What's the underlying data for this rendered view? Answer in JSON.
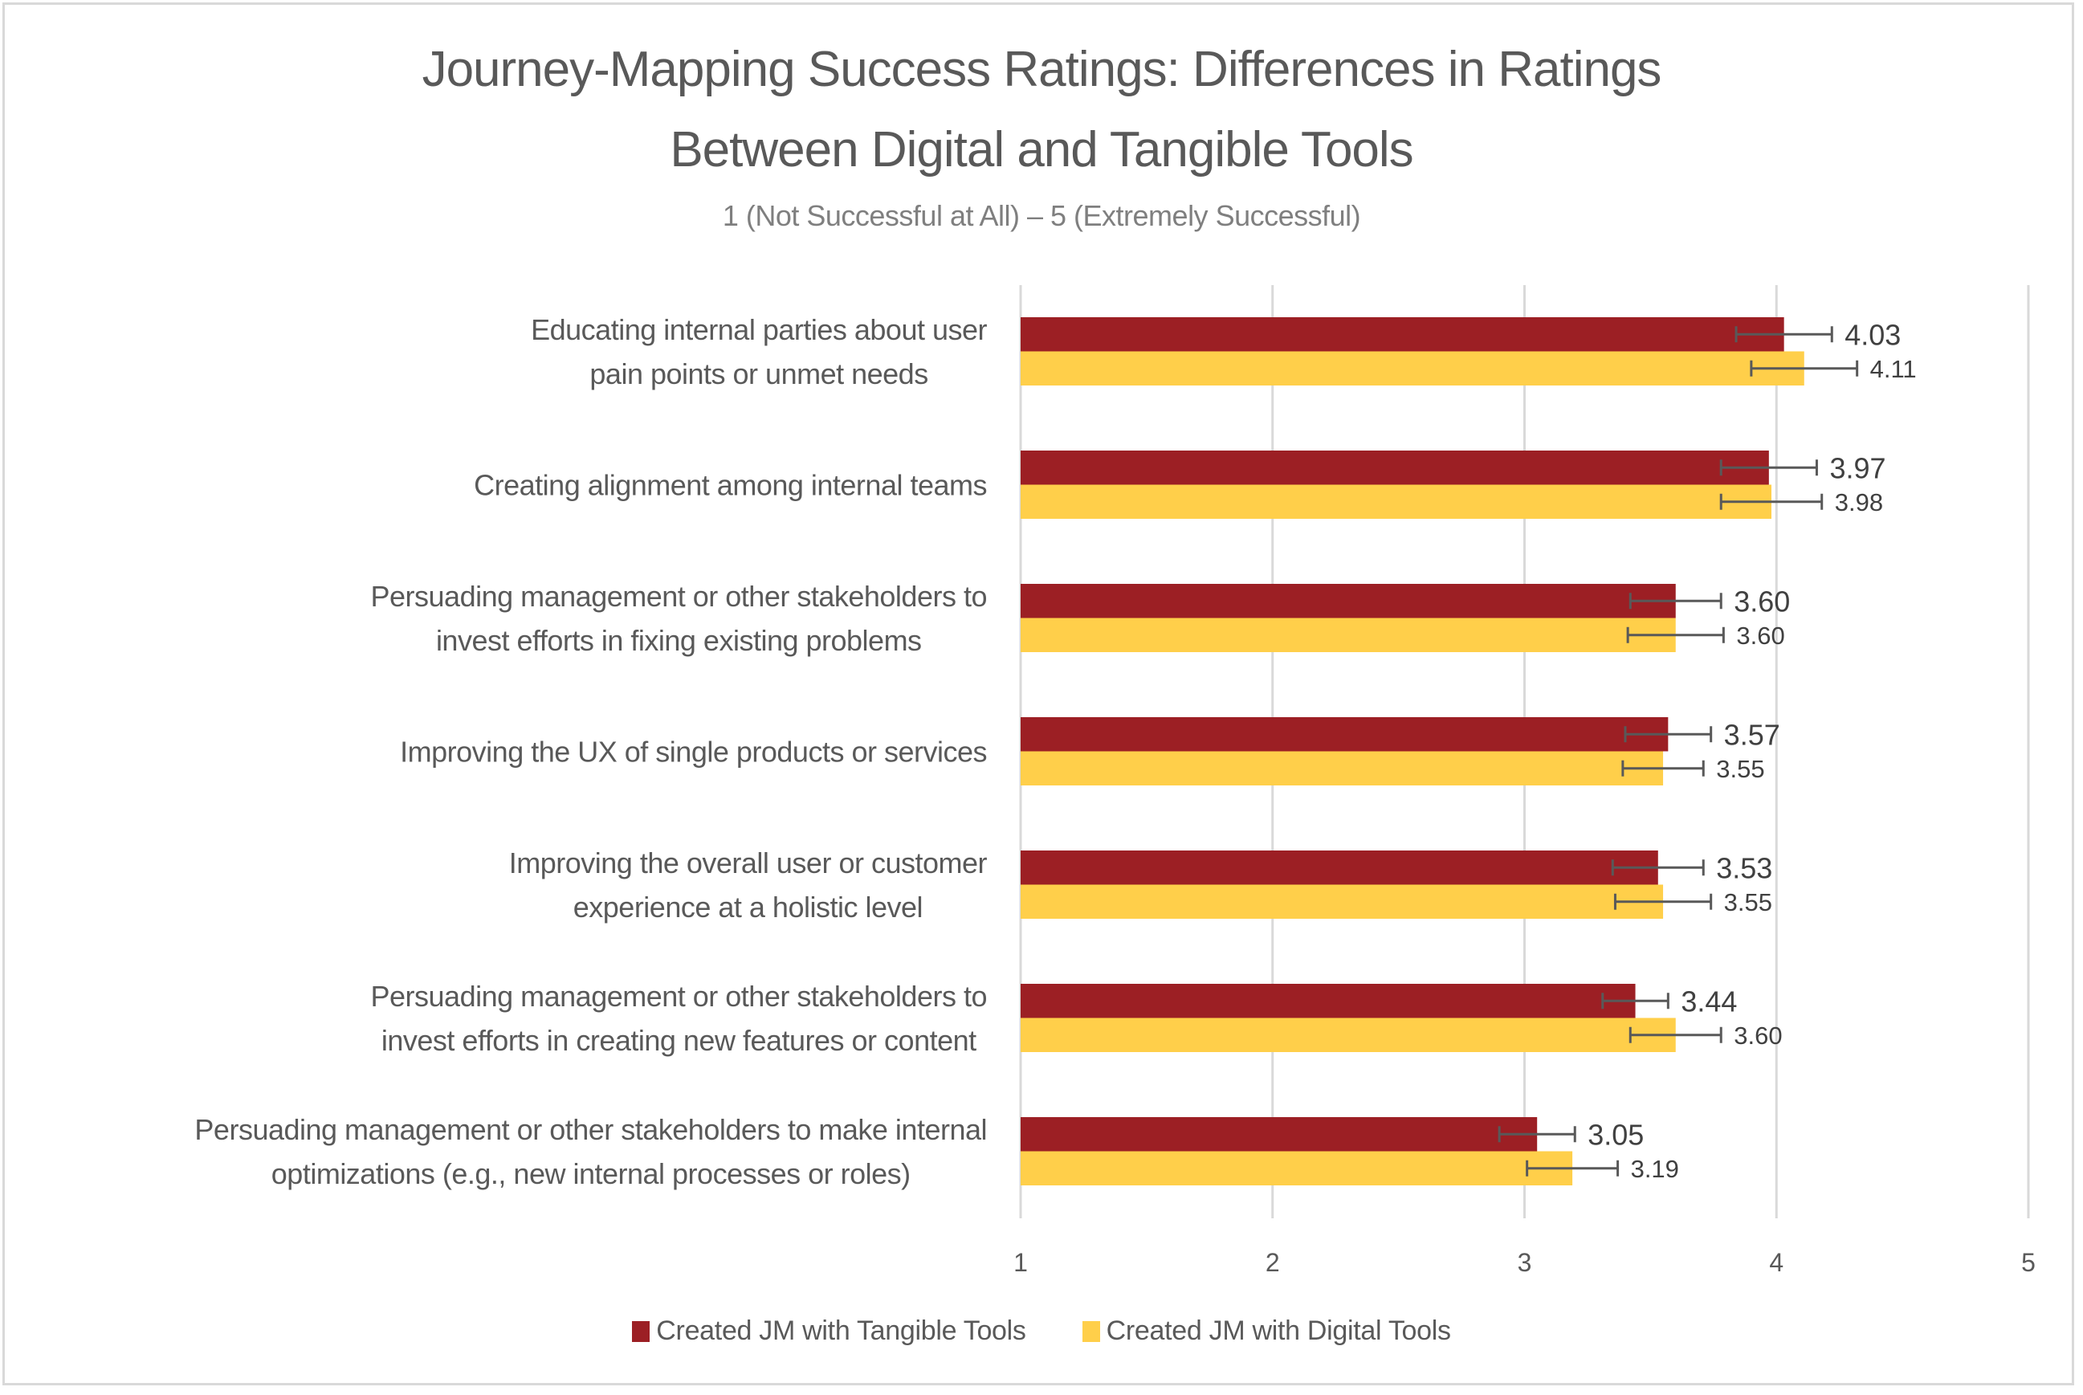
{
  "chart_data": {
    "type": "bar",
    "orientation": "horizontal",
    "title_lines": [
      "Journey-Mapping Success Ratings: Differences in Ratings",
      "Between Digital and Tangible Tools"
    ],
    "subtitle": "1 (Not Successful at All) – 5 (Extremely Successful)",
    "xlabel": "",
    "ylabel": "",
    "xlim": [
      1,
      5
    ],
    "x_ticks": [
      "1",
      "2",
      "3",
      "4",
      "5"
    ],
    "grid": true,
    "legend_position": "bottom",
    "categories": [
      {
        "lines": [
          "Educating internal parties about user",
          "pain points or unmet needs"
        ]
      },
      {
        "lines": [
          "Creating alignment among internal teams"
        ]
      },
      {
        "lines": [
          "Persuading management or other stakeholders to",
          "invest efforts in fixing existing problems"
        ]
      },
      {
        "lines": [
          "Improving the UX of single products or services"
        ]
      },
      {
        "lines": [
          "Improving the overall user or customer",
          "experience at a holistic level"
        ]
      },
      {
        "lines": [
          "Persuading management or other stakeholders to",
          "invest efforts in creating new features or content"
        ]
      },
      {
        "lines": [
          "Persuading management or other stakeholders to make internal",
          "optimizations (e.g., new internal processes or roles)"
        ]
      }
    ],
    "series": [
      {
        "name": "Created JM with Tangible Tools",
        "color": "#9c1f24",
        "values": [
          4.03,
          3.97,
          3.6,
          3.57,
          3.53,
          3.44,
          3.05
        ],
        "labels": [
          "4.03",
          "3.97",
          "3.60",
          "3.57",
          "3.53",
          "3.44",
          "3.05"
        ],
        "error_margin": [
          0.19,
          0.19,
          0.18,
          0.17,
          0.18,
          0.13,
          0.15
        ]
      },
      {
        "name": "Created JM with Digital Tools",
        "color": "#ffcf4a",
        "values": [
          4.11,
          3.98,
          3.6,
          3.55,
          3.55,
          3.6,
          3.19
        ],
        "labels": [
          "4.11",
          "3.98",
          "3.60",
          "3.55",
          "3.55",
          "3.60",
          "3.19"
        ],
        "error_margin": [
          0.21,
          0.2,
          0.19,
          0.16,
          0.19,
          0.18,
          0.18
        ]
      }
    ]
  },
  "colors": {
    "text": "#595959",
    "gridline": "#d9d9d9",
    "error_bar": "#595959"
  }
}
